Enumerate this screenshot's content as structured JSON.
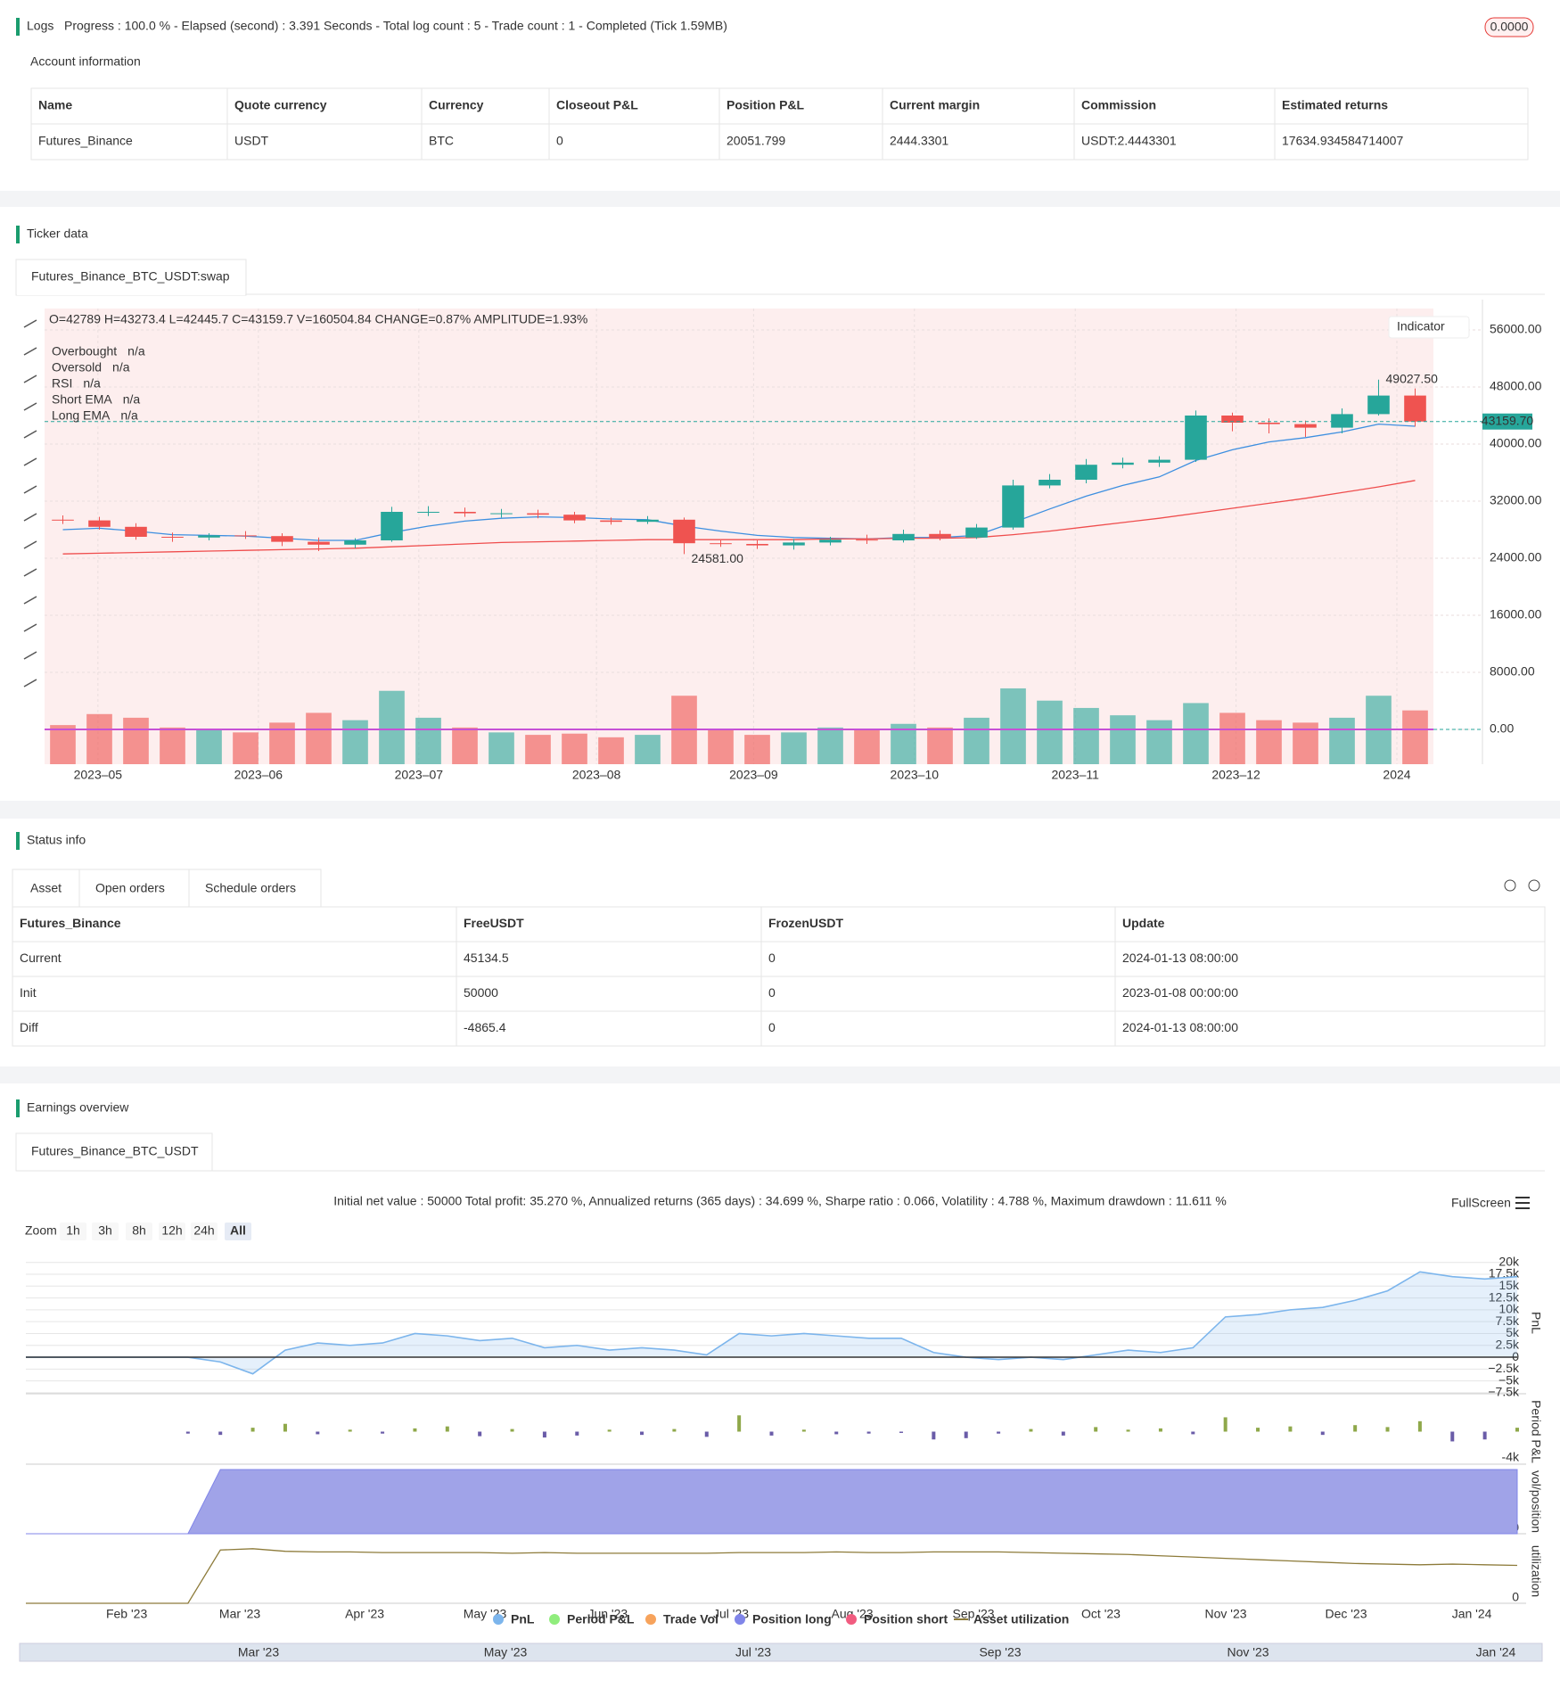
{
  "logs": {
    "title": "Logs",
    "progress": "Progress : 100.0 % - Elapsed (second) : 3.391 Seconds - Total log count : 5 - Trade count : 1 - Completed (Tick 1.59MB)",
    "badge": "0.0000"
  },
  "account": {
    "title": "Account information",
    "header": [
      "Name",
      "Quote currency",
      "Currency",
      "Closeout P&L",
      "Position P&L",
      "Current margin",
      "Commission",
      "Estimated returns"
    ],
    "rows": [
      [
        "Futures_Binance",
        "USDT",
        "BTC",
        "0",
        "20051.799",
        "2444.3301",
        "USDT:2.4443301",
        "17634.934584714007"
      ]
    ]
  },
  "ticker": {
    "title": "Ticker data",
    "tab": "Futures_Binance_BTC_USDT:swap",
    "chart_data": {
      "type": "candlestick",
      "info": "O=42789 H=43273.4 L=42445.7 C=43159.7 V=160504.84 CHANGE=0.87% AMPLITUDE=1.93%",
      "legend": [
        {
          "name": "Overbought",
          "value": "n/a",
          "color": "#9c6ad0"
        },
        {
          "name": "Oversold",
          "value": "n/a",
          "color": "#2196f3"
        },
        {
          "name": "RSI",
          "value": "n/a",
          "color": "#c2185b"
        },
        {
          "name": "Short EMA",
          "value": "n/a",
          "color": "#26a69a"
        },
        {
          "name": "Long EMA",
          "value": "n/a",
          "color": "#f39c12"
        }
      ],
      "indicator_button": "Indicator",
      "up_color": "#26a69a",
      "down_color": "#ef5350",
      "rsi_color": "#c651d6",
      "open": [
        29400,
        29300,
        28400,
        27000,
        26900,
        27200,
        27100,
        26300,
        25900,
        26500,
        30500,
        30500,
        30300,
        30300,
        30100,
        29300,
        29100,
        29400,
        26100,
        26000,
        25800,
        26200,
        26600,
        26500,
        27400,
        26900,
        28300,
        34200,
        35000,
        37100,
        37400,
        37800,
        44000,
        43000,
        42800,
        42300,
        44200,
        46800
      ],
      "close": [
        29300,
        28400,
        27000,
        26900,
        27200,
        27100,
        26300,
        25900,
        26500,
        30500,
        30500,
        30300,
        30300,
        30100,
        29300,
        29100,
        29400,
        26100,
        26000,
        25800,
        26200,
        26600,
        26500,
        27400,
        26900,
        28300,
        34200,
        35000,
        37100,
        37400,
        37800,
        44000,
        43000,
        42800,
        42300,
        44200,
        46800,
        43159.7
      ],
      "high": [
        30000,
        29800,
        28900,
        27600,
        27500,
        27800,
        27500,
        26900,
        26800,
        31200,
        31300,
        31100,
        30900,
        30800,
        30500,
        29700,
        29900,
        29700,
        26500,
        26500,
        26700,
        27000,
        27300,
        28000,
        27900,
        28800,
        35000,
        35800,
        37900,
        38100,
        38300,
        44700,
        44400,
        43600,
        43300,
        45000,
        49027.5,
        47800
      ],
      "low": [
        28800,
        28000,
        26600,
        26300,
        26500,
        26700,
        25700,
        25000,
        25400,
        26300,
        29900,
        29800,
        29700,
        29600,
        28900,
        28700,
        28800,
        24581,
        25600,
        25300,
        25200,
        25800,
        26000,
        26200,
        26500,
        26700,
        28000,
        33800,
        34500,
        36600,
        36800,
        37500,
        41800,
        41500,
        41000,
        41500,
        44000,
        42445.7
      ],
      "volume": [
        320000,
        410000,
        380000,
        300000,
        280000,
        260000,
        340000,
        420000,
        360000,
        600000,
        380000,
        300000,
        260000,
        240000,
        250000,
        220000,
        240000,
        560000,
        280000,
        240000,
        260000,
        300000,
        280000,
        330000,
        300000,
        380000,
        620000,
        520000,
        460000,
        400000,
        360000,
        500000,
        420000,
        360000,
        340000,
        380000,
        560000,
        440000
      ],
      "series": [
        {
          "name": "Short EMA",
          "color": "#3d8fe0",
          "values": [
            28000,
            28200,
            27800,
            27300,
            27200,
            27100,
            26800,
            26500,
            26500,
            27600,
            28500,
            29200,
            29600,
            29800,
            29700,
            29500,
            29400,
            28500,
            27800,
            27200,
            26900,
            26800,
            26700,
            26900,
            26900,
            27200,
            29000,
            30900,
            32700,
            34200,
            35400,
            37700,
            39200,
            40300,
            40900,
            41700,
            42800,
            42500
          ]
        },
        {
          "name": "Long EMA",
          "color": "#ef4d4d",
          "values": [
            24600,
            24700,
            24800,
            24900,
            25000,
            25100,
            25200,
            25300,
            25400,
            25600,
            25800,
            26000,
            26200,
            26300,
            26400,
            26500,
            26600,
            26600,
            26600,
            26600,
            26600,
            26700,
            26700,
            26800,
            26800,
            26900,
            27300,
            27800,
            28400,
            29000,
            29600,
            30300,
            31000,
            31700,
            32400,
            33200,
            34000,
            34900
          ]
        }
      ],
      "high_label": "49027.50",
      "low_label": "24581.00",
      "last_label": "43159.70",
      "last_value": 43159.7,
      "xlim": [
        -0.5,
        37.5
      ],
      "ylim": [
        -4875,
        59000
      ],
      "yticks": [
        {
          "value": 56000,
          "label": "56000.00"
        },
        {
          "value": 48000,
          "label": "48000.00"
        },
        {
          "value": 40000,
          "label": "40000.00"
        },
        {
          "value": 32000,
          "label": "32000.00"
        },
        {
          "value": 24000,
          "label": "24000.00"
        },
        {
          "value": 16000,
          "label": "16000.00"
        },
        {
          "value": 8000,
          "label": "8000.00"
        },
        {
          "value": 0,
          "label": "0.00"
        }
      ],
      "xticks": [
        {
          "value": 0.96,
          "label": "2023–05"
        },
        {
          "value": 5.35,
          "label": "2023–06"
        },
        {
          "value": 9.74,
          "label": "2023–07"
        },
        {
          "value": 14.6,
          "label": "2023–08"
        },
        {
          "value": 18.9,
          "label": "2023–09"
        },
        {
          "value": 23.3,
          "label": "2023–10"
        },
        {
          "value": 27.7,
          "label": "2023–11"
        },
        {
          "value": 32.1,
          "label": "2023–12"
        },
        {
          "value": 36.5,
          "label": "2024"
        }
      ],
      "grid": true
    }
  },
  "status": {
    "title": "Status info",
    "tabs": [
      "Asset",
      "Open orders",
      "Schedule orders"
    ],
    "table": {
      "header": [
        "Futures_Binance",
        "FreeUSDT",
        "FrozenUSDT",
        "Update"
      ],
      "rows": [
        [
          "Current",
          "45134.5",
          "0",
          "2024-01-13 08:00:00"
        ],
        [
          "Init",
          "50000",
          "0",
          "2023-01-08 00:00:00"
        ],
        [
          "Diff",
          "-4865.4",
          "0",
          "2024-01-13 08:00:00"
        ]
      ]
    }
  },
  "earnings": {
    "title": "Earnings overview",
    "tab": "Futures_Binance_BTC_USDT",
    "summary": "Initial net value : 50000 Total profit: 35.270 %, Annualized returns (365 days) : 34.699 %, Sharpe ratio : 0.066, Volatility : 4.788 %, Maximum drawdown : 11.611 %",
    "zoom": {
      "label": "Zoom",
      "buttons": [
        "1h",
        "3h",
        "8h",
        "12h",
        "24h",
        "All"
      ]
    },
    "fullscreen": "FullScreen",
    "chart_data": {
      "type": "line",
      "xlim": [
        0,
        46
      ],
      "xticks": [
        {
          "value": 3.11,
          "label": "Feb '23"
        },
        {
          "value": 6.6,
          "label": "Mar '23"
        },
        {
          "value": 10.45,
          "label": "Apr '23"
        },
        {
          "value": 14.16,
          "label": "May '23"
        },
        {
          "value": 17.95,
          "label": "Jun '23"
        },
        {
          "value": 21.75,
          "label": "Jul '23"
        },
        {
          "value": 25.49,
          "label": "Aug '23"
        },
        {
          "value": 29.23,
          "label": "Sep '23"
        },
        {
          "value": 33.16,
          "label": "Oct '23"
        },
        {
          "value": 37.01,
          "label": "Nov '23"
        },
        {
          "value": 40.72,
          "label": "Dec '23"
        },
        {
          "value": 44.6,
          "label": "Jan '24"
        }
      ],
      "panels": [
        {
          "title": "PnL",
          "ylim": [
            -7700,
            22200
          ],
          "yticks": [
            {
              "value": 20000,
              "label": "20k"
            },
            {
              "value": 17500,
              "label": "17.5k"
            },
            {
              "value": 15000,
              "label": "15k"
            },
            {
              "value": 12500,
              "label": "12.5k"
            },
            {
              "value": 10000,
              "label": "10k"
            },
            {
              "value": 7500,
              "label": "7.5k"
            },
            {
              "value": 5000,
              "label": "5k"
            },
            {
              "value": 2500,
              "label": "2.5k"
            },
            0,
            {
              "value": -2500,
              "label": "−2.5k"
            },
            {
              "value": -5000,
              "label": "−5k"
            },
            {
              "value": -7500,
              "label": "−7.5k"
            }
          ]
        },
        {
          "title": "Period P&L",
          "ylim": [
            -5000,
            5000
          ],
          "yticks": [
            {
              "value": -4000,
              "label": "-4k"
            }
          ]
        },
        {
          "title": "vol/position",
          "ylim": [
            0,
            1
          ],
          "yticks": [
            0
          ]
        },
        {
          "title": "utilization",
          "ylim": [
            0,
            1
          ],
          "yticks": [
            0
          ]
        }
      ],
      "series": [
        {
          "name": "PnL",
          "color": "#7cb5ec",
          "panel": 0,
          "values": [
            0,
            0,
            0,
            0,
            0,
            0,
            -1000,
            -3500,
            1500,
            3000,
            2500,
            3000,
            5000,
            4500,
            3500,
            4000,
            2000,
            2500,
            1500,
            2000,
            1500,
            500,
            5000,
            4500,
            5000,
            4500,
            4000,
            4000,
            1000,
            0,
            -500,
            0,
            -500,
            500,
            1500,
            1000,
            2000,
            8500,
            9000,
            10000,
            10500,
            12000,
            14000,
            18000,
            17000,
            16500,
            17000
          ]
        },
        {
          "name": "Period P&L",
          "color": "#90ed7d",
          "bar_color": "#8fa84a",
          "negative_color": "#6a5ca8",
          "panel": 1,
          "values": [
            0,
            0,
            0,
            0,
            0,
            -300,
            -500,
            600,
            1200,
            -400,
            300,
            -300,
            500,
            800,
            -700,
            400,
            -900,
            -600,
            300,
            -500,
            400,
            -800,
            2500,
            -600,
            300,
            -400,
            -300,
            -200,
            -1200,
            -1000,
            -300,
            400,
            -600,
            700,
            300,
            500,
            -400,
            2200,
            600,
            800,
            -500,
            1000,
            700,
            1600,
            -1500,
            -1200,
            600
          ]
        },
        {
          "name": "Trade Vol",
          "color": "#f7a35c"
        },
        {
          "name": "Position long",
          "color": "#8085e9",
          "panel": 2,
          "values": [
            0,
            0,
            0,
            0,
            0,
            0,
            1,
            1,
            1,
            1,
            1,
            1,
            1,
            1,
            1,
            1,
            1,
            1,
            1,
            1,
            1,
            1,
            1,
            1,
            1,
            1,
            1,
            1,
            1,
            1,
            1,
            1,
            1,
            1,
            1,
            1,
            1,
            1,
            1,
            1,
            1,
            1,
            1,
            1,
            1,
            1,
            1
          ]
        },
        {
          "name": "Position short",
          "color": "#f15c80"
        },
        {
          "name": "Asset utilization",
          "color": "#8d7b3a",
          "marker": "line",
          "panel": 3,
          "values": [
            0,
            0,
            0,
            0,
            0,
            0,
            0.83,
            0.85,
            0.81,
            0.8,
            0.8,
            0.79,
            0.79,
            0.79,
            0.79,
            0.78,
            0.79,
            0.78,
            0.78,
            0.78,
            0.78,
            0.78,
            0.79,
            0.79,
            0.79,
            0.8,
            0.79,
            0.79,
            0.8,
            0.8,
            0.8,
            0.79,
            0.78,
            0.77,
            0.76,
            0.74,
            0.72,
            0.7,
            0.68,
            0.66,
            0.64,
            0.62,
            0.61,
            0.6,
            0.61,
            0.6,
            0.59
          ]
        }
      ],
      "navigator": [
        "Mar '23",
        "May '23",
        "Jul '23",
        "Sep '23",
        "Nov '23",
        "Jan '24"
      ]
    }
  }
}
